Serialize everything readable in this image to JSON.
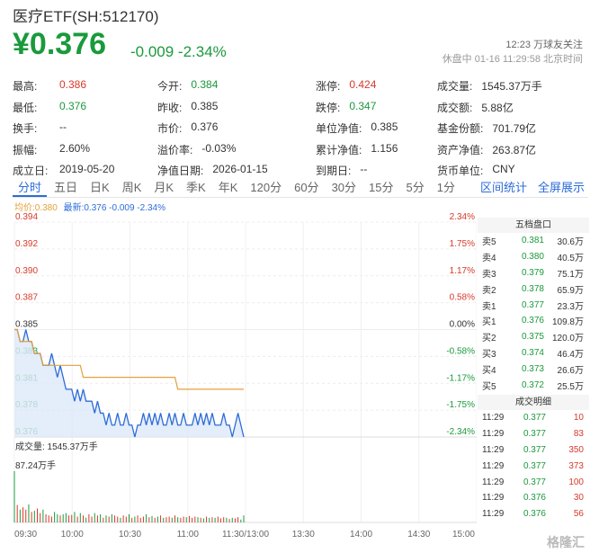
{
  "header": {
    "title": "医疗ETF(SH:512170)",
    "price": "¥0.376",
    "change": "-0.009 -2.34%",
    "time_line1": "12:23 万球友关注",
    "time_line2": "休盘中 01-16 11:29:58 北京时间"
  },
  "stats": [
    [
      {
        "label": "最高:",
        "value": "0.386",
        "color": "red"
      },
      {
        "label": "今开:",
        "value": "0.384",
        "color": "green"
      },
      {
        "label": "涨停:",
        "value": "0.424",
        "color": "red"
      },
      {
        "label": "成交量:",
        "value": "1545.37万手",
        "color": ""
      }
    ],
    [
      {
        "label": "最低:",
        "value": "0.376",
        "color": "green"
      },
      {
        "label": "昨收:",
        "value": "0.385",
        "color": ""
      },
      {
        "label": "跌停:",
        "value": "0.347",
        "color": "green"
      },
      {
        "label": "成交额:",
        "value": "5.88亿",
        "color": ""
      }
    ],
    [
      {
        "label": "换手:",
        "value": "--",
        "color": ""
      },
      {
        "label": "市价:",
        "value": "0.376",
        "color": ""
      },
      {
        "label": "单位净值:",
        "value": "0.385",
        "color": ""
      },
      {
        "label": "基金份额:",
        "value": "701.79亿",
        "color": ""
      }
    ],
    [
      {
        "label": "振幅:",
        "value": "2.60%",
        "color": ""
      },
      {
        "label": "溢价率:",
        "value": "-0.03%",
        "color": ""
      },
      {
        "label": "累计净值:",
        "value": "1.156",
        "color": ""
      },
      {
        "label": "资产净值:",
        "value": "263.87亿",
        "color": ""
      }
    ],
    [
      {
        "label": "成立日:",
        "value": "2019-05-20",
        "color": ""
      },
      {
        "label": "净值日期:",
        "value": "2026-01-15",
        "color": ""
      },
      {
        "label": "到期日:",
        "value": "--",
        "color": ""
      },
      {
        "label": "货币单位:",
        "value": "CNY",
        "color": ""
      }
    ]
  ],
  "tabs": [
    "分时",
    "五日",
    "日K",
    "周K",
    "月K",
    "季K",
    "年K",
    "120分",
    "60分",
    "30分",
    "15分",
    "5分",
    "1分"
  ],
  "tabs_right": [
    "区间统计",
    "全屏展示"
  ],
  "legend": {
    "avg": "均价:0.380",
    "latest": "最新:0.376 -0.009 -2.34%"
  },
  "chart_data": {
    "type": "line",
    "y_left_ticks": [
      "0.394",
      "0.392",
      "0.390",
      "0.387",
      "0.385",
      "0.383",
      "0.381",
      "0.378",
      "0.376"
    ],
    "y_right_ticks": [
      "2.34%",
      "1.75%",
      "1.17%",
      "0.58%",
      "0.00%",
      "-0.58%",
      "-1.17%",
      "-1.75%",
      "-2.34%"
    ],
    "x_ticks": [
      "09:30",
      "10:00",
      "10:30",
      "11:00",
      "11:30/13:00",
      "13:30",
      "14:00",
      "14:30",
      "15:00"
    ],
    "ylim": [
      0.376,
      0.394
    ],
    "volume_label": "成交量: 1545.37万手",
    "volume_max_label": "87.24万手",
    "series": [
      {
        "name": "最新",
        "values": [
          0.385,
          0.385,
          0.384,
          0.384,
          0.385,
          0.384,
          0.384,
          0.383,
          0.383,
          0.383,
          0.382,
          0.382,
          0.382,
          0.383,
          0.382,
          0.381,
          0.382,
          0.381,
          0.38,
          0.38,
          0.38,
          0.379,
          0.38,
          0.379,
          0.38,
          0.379,
          0.379,
          0.379,
          0.378,
          0.379,
          0.378,
          0.378,
          0.377,
          0.378,
          0.377,
          0.377,
          0.378,
          0.377,
          0.377,
          0.378,
          0.377,
          0.377,
          0.376,
          0.377,
          0.377,
          0.378,
          0.377,
          0.378,
          0.377,
          0.378,
          0.377,
          0.378,
          0.377,
          0.377,
          0.378,
          0.377,
          0.378,
          0.377,
          0.377,
          0.378,
          0.377,
          0.377,
          0.377,
          0.378,
          0.377,
          0.378,
          0.377,
          0.378,
          0.377,
          0.378,
          0.377,
          0.377,
          0.377,
          0.378,
          0.377,
          0.377,
          0.376,
          0.377,
          0.378,
          0.377,
          0.376
        ]
      },
      {
        "name": "均价",
        "values": [
          0.385,
          0.385,
          0.384,
          0.384,
          0.384,
          0.384,
          0.384,
          0.383,
          0.383,
          0.383,
          0.382,
          0.382,
          0.382,
          0.382,
          0.382,
          0.382,
          0.382,
          0.382,
          0.382,
          0.382,
          0.382,
          0.382,
          0.382,
          0.382,
          0.381,
          0.381,
          0.381,
          0.381,
          0.381,
          0.381,
          0.381,
          0.381,
          0.381,
          0.381,
          0.381,
          0.381,
          0.381,
          0.381,
          0.381,
          0.381,
          0.381,
          0.381,
          0.381,
          0.381,
          0.381,
          0.381,
          0.381,
          0.381,
          0.381,
          0.381,
          0.381,
          0.381,
          0.381,
          0.381,
          0.381,
          0.381,
          0.381,
          0.38,
          0.38,
          0.38,
          0.38,
          0.38,
          0.38,
          0.38,
          0.38,
          0.38,
          0.38,
          0.38,
          0.38,
          0.38,
          0.38,
          0.38,
          0.38,
          0.38,
          0.38,
          0.38,
          0.38,
          0.38,
          0.38,
          0.38,
          0.38
        ]
      }
    ],
    "volume": [
      88,
      30,
      22,
      26,
      22,
      31,
      18,
      20,
      24,
      16,
      22,
      14,
      12,
      10,
      18,
      14,
      12,
      14,
      16,
      12,
      13,
      18,
      10,
      16,
      12,
      8,
      14,
      10,
      16,
      12,
      14,
      8,
      12,
      10,
      14,
      12,
      10,
      8,
      12,
      10,
      14,
      8,
      10,
      12,
      8,
      10,
      14,
      9,
      11,
      8,
      10,
      12,
      8,
      9,
      10,
      8,
      12,
      9,
      8,
      10,
      9,
      11,
      8,
      10,
      9,
      8,
      7,
      10,
      8,
      9,
      8,
      10,
      7,
      9,
      8,
      6,
      8,
      7,
      9,
      5,
      12
    ]
  },
  "order_book": {
    "title": "五档盘口",
    "rows": [
      {
        "side": "卖5",
        "price": "0.381",
        "vol": "30.6万"
      },
      {
        "side": "卖4",
        "price": "0.380",
        "vol": "40.5万"
      },
      {
        "side": "卖3",
        "price": "0.379",
        "vol": "75.1万"
      },
      {
        "side": "卖2",
        "price": "0.378",
        "vol": "65.9万"
      },
      {
        "side": "卖1",
        "price": "0.377",
        "vol": "23.3万"
      },
      {
        "side": "买1",
        "price": "0.376",
        "vol": "109.8万"
      },
      {
        "side": "买2",
        "price": "0.375",
        "vol": "120.0万"
      },
      {
        "side": "买3",
        "price": "0.374",
        "vol": "46.4万"
      },
      {
        "side": "买4",
        "price": "0.373",
        "vol": "26.6万"
      },
      {
        "side": "买5",
        "price": "0.372",
        "vol": "25.5万"
      }
    ]
  },
  "deals": {
    "title": "成交明细",
    "rows": [
      {
        "time": "11:29",
        "price": "0.377",
        "vol": "10"
      },
      {
        "time": "11:29",
        "price": "0.377",
        "vol": "83"
      },
      {
        "time": "11:29",
        "price": "0.377",
        "vol": "350"
      },
      {
        "time": "11:29",
        "price": "0.377",
        "vol": "373"
      },
      {
        "time": "11:29",
        "price": "0.377",
        "vol": "100"
      },
      {
        "time": "11:29",
        "price": "0.376",
        "vol": "30"
      },
      {
        "time": "11:29",
        "price": "0.376",
        "vol": "56"
      }
    ]
  },
  "watermark": "格隆汇",
  "colors": {
    "up": "#d7392b",
    "down": "#1a9a3c",
    "avg": "#e3a13b",
    "line": "#2d6cd8",
    "fill": "#dde9f9"
  }
}
